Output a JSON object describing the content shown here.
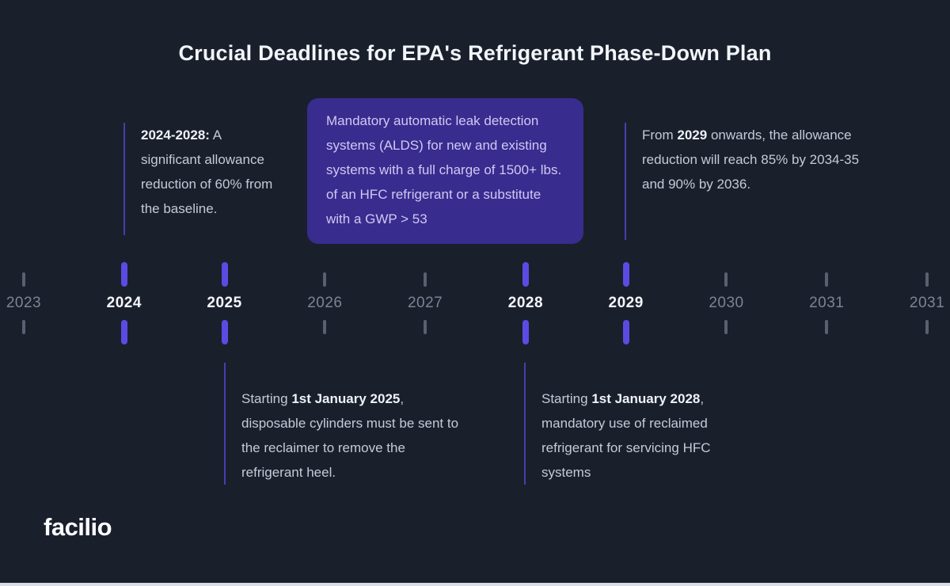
{
  "title": "Crucial Deadlines for EPA's Refrigerant Phase-Down Plan",
  "colors": {
    "background": "#1a1f2c",
    "callout_box": "#382c8e",
    "highlight_tick": "#5c4be3",
    "connector_line": "#4a3cae",
    "muted_tick": "#596070",
    "muted_label": "#7c8494",
    "body_text": "#c3cbd7",
    "title_text": "#f2f5f9"
  },
  "annotations": {
    "top_left": {
      "bold": "2024-2028:",
      "text": " A significant allowance reduction of 60% from the baseline."
    },
    "callout": {
      "text": "Mandatory automatic leak detection systems (ALDS) for new and existing systems with a full charge of 1500+ lbs. of an HFC refrigerant or a substitute with a GWP > 53"
    },
    "top_right": {
      "pre": "From ",
      "bold": "2029",
      "post": " onwards, the allowance reduction will reach 85% by 2034-35 and 90% by 2036."
    },
    "bottom_left": {
      "pre": "Starting ",
      "bold": "1st January 2025",
      "post": ", disposable cylinders must be sent to the reclaimer to remove the refrigerant heel."
    },
    "bottom_right": {
      "pre": "Starting ",
      "bold": "1st January 2028",
      "post": ", mandatory use of reclaimed refrigerant for servicing HFC systems"
    }
  },
  "timeline": {
    "years": [
      {
        "label": "2023",
        "highlighted": false
      },
      {
        "label": "2024",
        "highlighted": true
      },
      {
        "label": "2025",
        "highlighted": true
      },
      {
        "label": "2026",
        "highlighted": false
      },
      {
        "label": "2027",
        "highlighted": false
      },
      {
        "label": "2028",
        "highlighted": true
      },
      {
        "label": "2029",
        "highlighted": true
      },
      {
        "label": "2030",
        "highlighted": false
      },
      {
        "label": "2031",
        "highlighted": false
      },
      {
        "label": "2031",
        "highlighted": false
      }
    ]
  },
  "logo": "facilio"
}
